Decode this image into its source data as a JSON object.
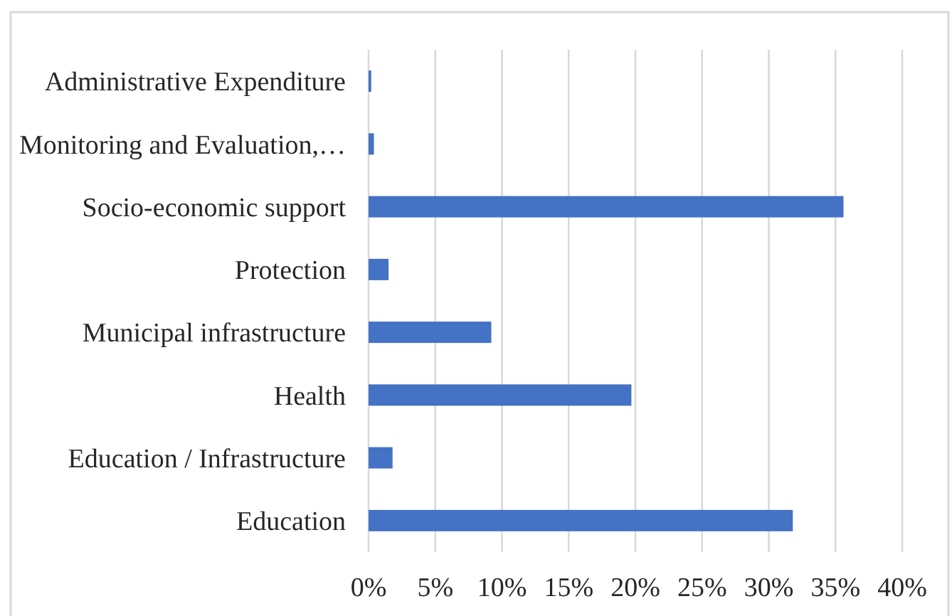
{
  "chart_data": {
    "type": "bar",
    "orientation": "horizontal",
    "categories": [
      "Administrative Expenditure",
      "Monitoring and Evaluation,…",
      "Socio-economic support",
      "Protection",
      "Municipal infrastructure",
      "Health",
      "Education / Infrastructure",
      "Education"
    ],
    "values": [
      0.2,
      0.4,
      35.6,
      1.5,
      9.2,
      19.7,
      1.8,
      31.8
    ],
    "color": "#4472c4",
    "xlim": [
      0,
      40
    ],
    "xticks": [
      {
        "value": 0,
        "label": "0%"
      },
      {
        "value": 5,
        "label": "5%"
      },
      {
        "value": 10,
        "label": "10%"
      },
      {
        "value": 15,
        "label": "15%"
      },
      {
        "value": 20,
        "label": "20%"
      },
      {
        "value": 25,
        "label": "25%"
      },
      {
        "value": 30,
        "label": "30%"
      },
      {
        "value": 35,
        "label": "35%"
      },
      {
        "value": 40,
        "label": "40%"
      }
    ],
    "grid": "x"
  }
}
